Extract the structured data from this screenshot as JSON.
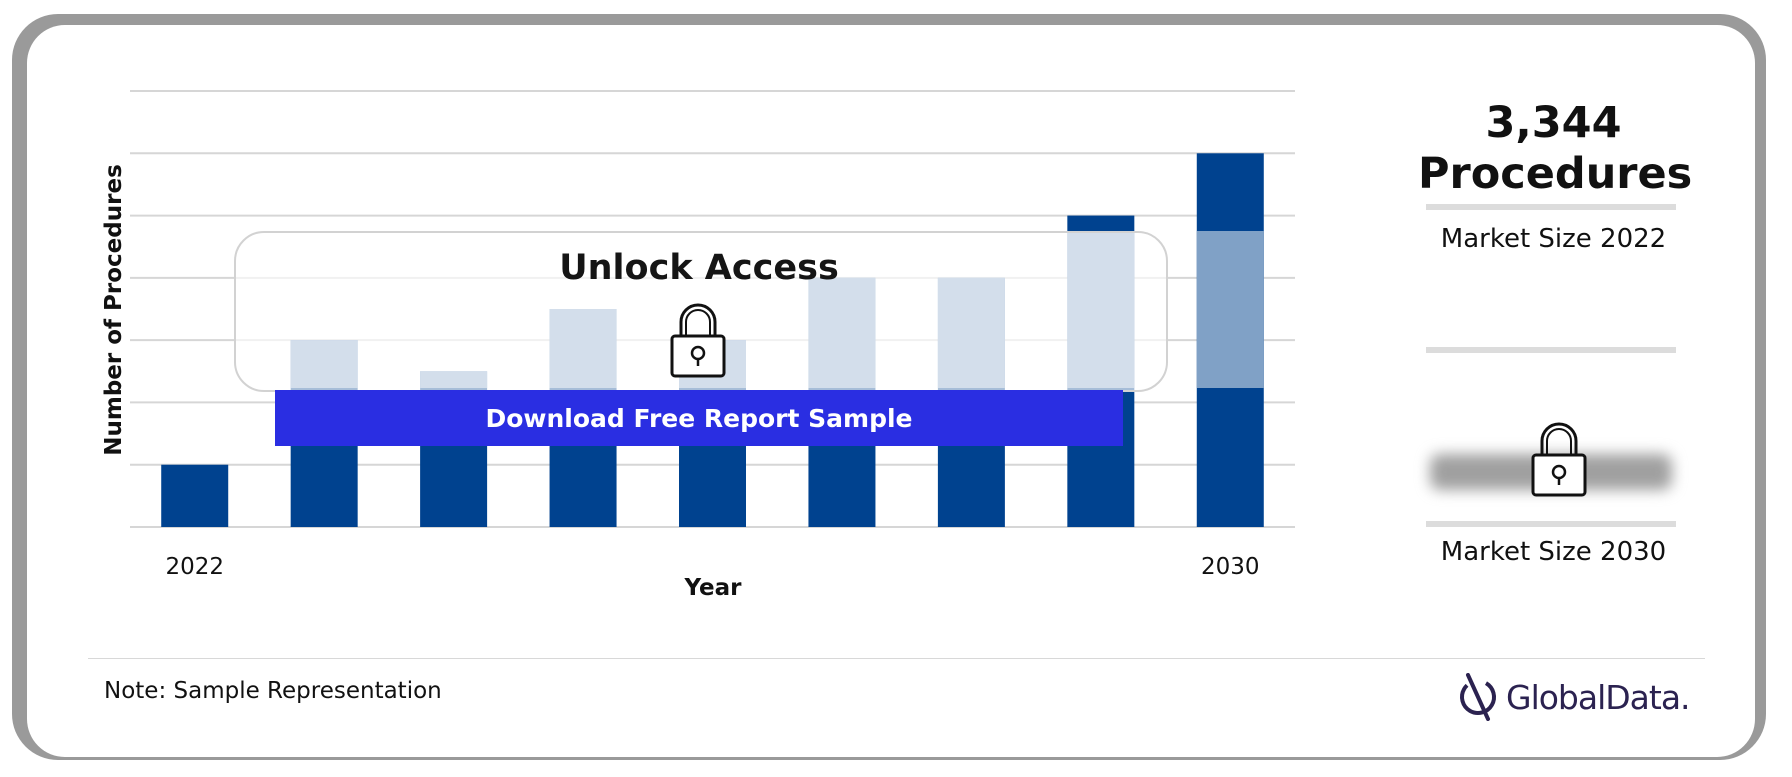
{
  "chart_data": {
    "type": "bar",
    "categories": [
      "2022",
      "",
      "",
      "",
      "",
      "",
      "",
      "",
      "2030"
    ],
    "values": [
      1,
      3,
      2.5,
      3.5,
      3,
      4,
      4,
      5,
      6
    ],
    "ylim": [
      0,
      7
    ],
    "gridlines": [
      0,
      1,
      2,
      3,
      4,
      5,
      6,
      7
    ],
    "xlabel": "Year",
    "ylabel": "Number of Procedures",
    "grid": true,
    "colors": {
      "bar": "#00428f",
      "bar_masked": "#80a1c6",
      "grid": "#d6d6d6"
    }
  },
  "kpis": [
    {
      "value_line1": "3,344",
      "value_line2": "Procedures",
      "label": "Market Size 2022"
    },
    {
      "value_line1": "",
      "value_line2": "",
      "label": "Market Size 2030",
      "locked": true
    }
  ],
  "overlay": {
    "title": "Unlock Access",
    "button": "Download Free Report Sample",
    "icon": "padlock-icon"
  },
  "footer": {
    "note": "Note: Sample Representation",
    "brand": "GlobalData."
  }
}
